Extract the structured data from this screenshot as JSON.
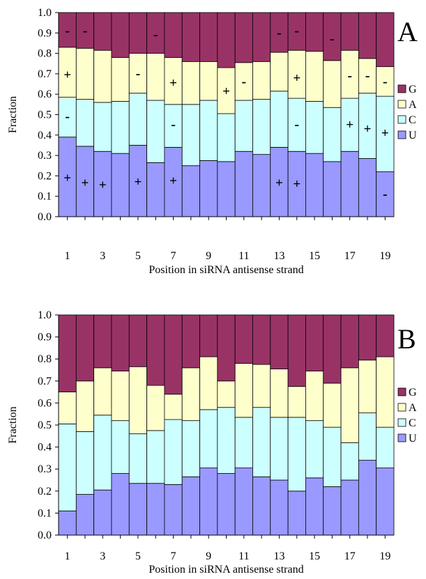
{
  "chart_data": [
    {
      "type": "bar",
      "stacked": true,
      "panel_label": "A",
      "xlabel": "Position in siRNA antisense strand",
      "ylabel": "Fraction",
      "ylim": [
        0,
        1
      ],
      "y_ticks": [
        "0.0",
        "0.1",
        "0.2",
        "0.3",
        "0.4",
        "0.5",
        "0.6",
        "0.7",
        "0.8",
        "0.9",
        "1.0"
      ],
      "categories": [
        1,
        2,
        3,
        4,
        5,
        6,
        7,
        8,
        9,
        10,
        11,
        12,
        13,
        14,
        15,
        16,
        17,
        18,
        19
      ],
      "x_tick_labels": [
        "1",
        "3",
        "5",
        "7",
        "9",
        "11",
        "13",
        "15",
        "17",
        "19"
      ],
      "legend_position": "right",
      "series": [
        {
          "name": "U",
          "color": "#9999ff",
          "values": [
            0.39,
            0.345,
            0.32,
            0.31,
            0.35,
            0.265,
            0.34,
            0.25,
            0.275,
            0.27,
            0.32,
            0.305,
            0.34,
            0.32,
            0.31,
            0.27,
            0.32,
            0.285,
            0.22
          ]
        },
        {
          "name": "C",
          "color": "#ccffff",
          "values": [
            0.195,
            0.23,
            0.24,
            0.255,
            0.255,
            0.305,
            0.21,
            0.3,
            0.295,
            0.235,
            0.25,
            0.27,
            0.275,
            0.26,
            0.255,
            0.265,
            0.26,
            0.32,
            0.37
          ]
        },
        {
          "name": "A",
          "color": "#ffffcc",
          "values": [
            0.245,
            0.25,
            0.255,
            0.215,
            0.195,
            0.23,
            0.23,
            0.21,
            0.19,
            0.225,
            0.185,
            0.185,
            0.19,
            0.235,
            0.245,
            0.23,
            0.235,
            0.17,
            0.145
          ]
        },
        {
          "name": "G",
          "color": "#993366",
          "values": [
            0.17,
            0.175,
            0.185,
            0.22,
            0.2,
            0.2,
            0.22,
            0.24,
            0.24,
            0.27,
            0.245,
            0.24,
            0.195,
            0.185,
            0.19,
            0.235,
            0.185,
            0.225,
            0.265
          ]
        }
      ],
      "annotations": [
        {
          "text": "-",
          "x": 1,
          "y": 0.91
        },
        {
          "text": "+",
          "x": 1,
          "y": 0.695
        },
        {
          "text": "-",
          "x": 1,
          "y": 0.49
        },
        {
          "text": "+",
          "x": 1,
          "y": 0.19
        },
        {
          "text": "-",
          "x": 2,
          "y": 0.91
        },
        {
          "text": "+",
          "x": 2,
          "y": 0.165
        },
        {
          "text": "+",
          "x": 3,
          "y": 0.155
        },
        {
          "text": "-",
          "x": 5,
          "y": 0.7
        },
        {
          "text": "+",
          "x": 5,
          "y": 0.17
        },
        {
          "text": "-",
          "x": 6,
          "y": 0.89
        },
        {
          "text": "+",
          "x": 7,
          "y": 0.655
        },
        {
          "text": "-",
          "x": 7,
          "y": 0.45
        },
        {
          "text": "+",
          "x": 7,
          "y": 0.175
        },
        {
          "text": "+",
          "x": 10,
          "y": 0.615
        },
        {
          "text": "-",
          "x": 11,
          "y": 0.66
        },
        {
          "text": "-",
          "x": 13,
          "y": 0.9
        },
        {
          "text": "+",
          "x": 13,
          "y": 0.165
        },
        {
          "text": "-",
          "x": 14,
          "y": 0.91
        },
        {
          "text": "+",
          "x": 14,
          "y": 0.68
        },
        {
          "text": "-",
          "x": 14,
          "y": 0.45
        },
        {
          "text": "+",
          "x": 14,
          "y": 0.16
        },
        {
          "text": "-",
          "x": 16,
          "y": 0.87
        },
        {
          "text": "-",
          "x": 17,
          "y": 0.69
        },
        {
          "text": "+",
          "x": 17,
          "y": 0.45
        },
        {
          "text": "-",
          "x": 18,
          "y": 0.69
        },
        {
          "text": "+",
          "x": 18,
          "y": 0.43
        },
        {
          "text": "-",
          "x": 19,
          "y": 0.66
        },
        {
          "text": "+",
          "x": 19,
          "y": 0.41
        },
        {
          "text": "-",
          "x": 19,
          "y": 0.11
        }
      ]
    },
    {
      "type": "bar",
      "stacked": true,
      "panel_label": "B",
      "xlabel": "Position in siRNA antisense strand",
      "ylabel": "Fraction",
      "ylim": [
        0,
        1
      ],
      "y_ticks": [
        "0.0",
        "0.1",
        "0.2",
        "0.3",
        "0.4",
        "0.5",
        "0.6",
        "0.7",
        "0.8",
        "0.9",
        "1.0"
      ],
      "categories": [
        1,
        2,
        3,
        4,
        5,
        6,
        7,
        8,
        9,
        10,
        11,
        12,
        13,
        14,
        15,
        16,
        17,
        18,
        19
      ],
      "x_tick_labels": [
        "1",
        "3",
        "5",
        "7",
        "9",
        "11",
        "13",
        "15",
        "17",
        "19"
      ],
      "legend_position": "right",
      "series": [
        {
          "name": "U",
          "color": "#9999ff",
          "values": [
            0.11,
            0.185,
            0.205,
            0.28,
            0.235,
            0.235,
            0.23,
            0.265,
            0.305,
            0.28,
            0.305,
            0.265,
            0.25,
            0.2,
            0.26,
            0.22,
            0.25,
            0.34,
            0.305
          ]
        },
        {
          "name": "C",
          "color": "#ccffff",
          "values": [
            0.395,
            0.285,
            0.34,
            0.24,
            0.225,
            0.24,
            0.295,
            0.255,
            0.265,
            0.3,
            0.23,
            0.315,
            0.285,
            0.335,
            0.26,
            0.27,
            0.17,
            0.215,
            0.185
          ]
        },
        {
          "name": "A",
          "color": "#ffffcc",
          "values": [
            0.145,
            0.23,
            0.215,
            0.225,
            0.305,
            0.205,
            0.115,
            0.24,
            0.24,
            0.12,
            0.245,
            0.195,
            0.22,
            0.14,
            0.225,
            0.2,
            0.34,
            0.24,
            0.32
          ]
        },
        {
          "name": "G",
          "color": "#993366",
          "values": [
            0.35,
            0.3,
            0.24,
            0.255,
            0.235,
            0.32,
            0.36,
            0.24,
            0.19,
            0.3,
            0.22,
            0.225,
            0.245,
            0.325,
            0.255,
            0.31,
            0.24,
            0.205,
            0.19
          ]
        }
      ],
      "annotations": []
    }
  ]
}
